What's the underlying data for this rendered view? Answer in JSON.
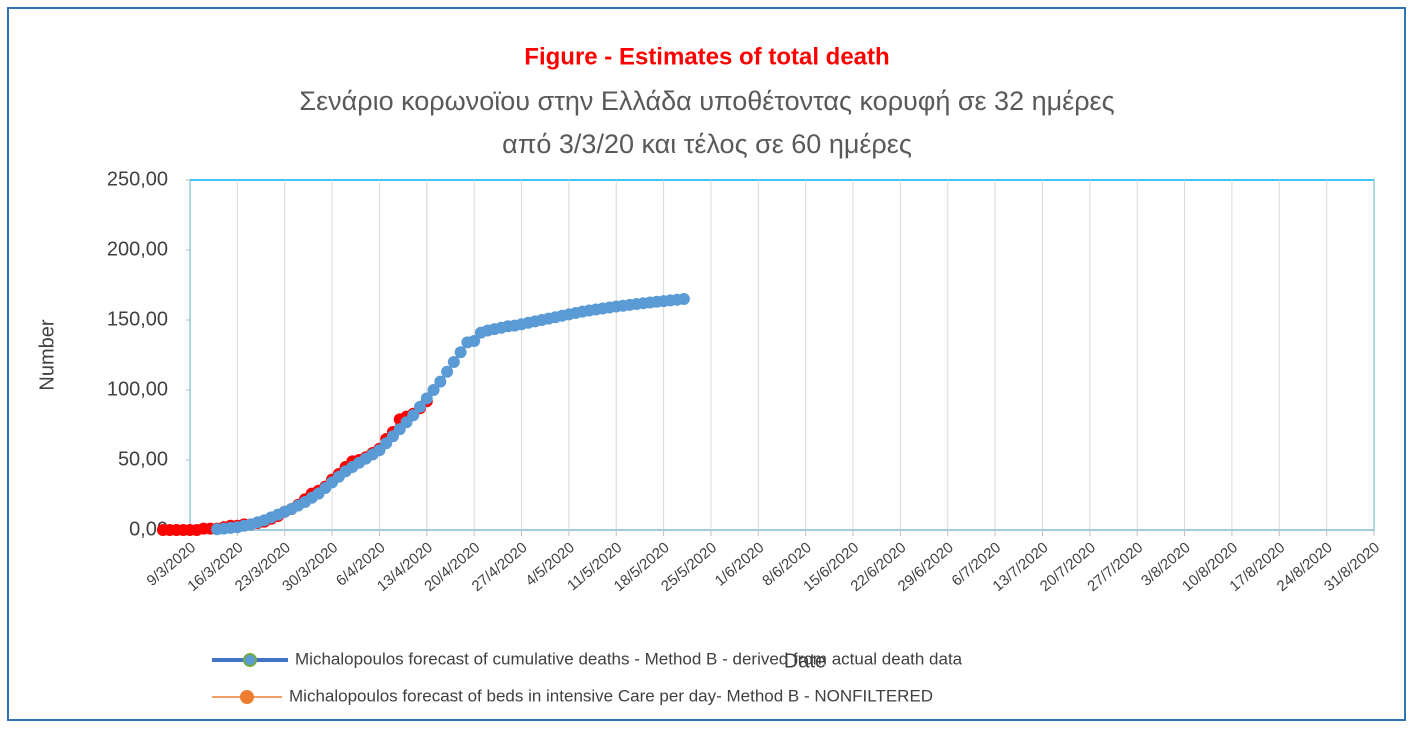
{
  "chart_data": {
    "type": "scatter-line",
    "title": "Figure  -  Estimates of total death",
    "subtitle": [
      "Σενάριο κορωνοϊου στην Ελλάδα υποθέτοντας κορυφή σε  32 ημέρες",
      "από 3/3/20  και τέλος σε  60 ημέρες"
    ],
    "x_label": "Date",
    "y_label": "Number",
    "xlim": [
      "9/3/2020",
      "31/8/2020"
    ],
    "xticks": [
      "9/3/2020",
      "16/3/2020",
      "23/3/2020",
      "30/3/2020",
      "6/4/2020",
      "13/4/2020",
      "20/4/2020",
      "27/4/2020",
      "4/5/2020",
      "11/5/2020",
      "18/5/2020",
      "25/5/2020",
      "1/6/2020",
      "8/6/2020",
      "15/6/2020",
      "22/6/2020",
      "29/6/2020",
      "6/7/2020",
      "13/7/2020",
      "20/7/2020",
      "27/7/2020",
      "3/8/2020",
      "10/8/2020",
      "17/8/2020",
      "24/8/2020",
      "31/8/2020"
    ],
    "ylim": [
      0,
      250
    ],
    "yticks": [
      {
        "value": 0,
        "label": "0,00"
      },
      {
        "value": 50,
        "label": "50,00"
      },
      {
        "value": 100,
        "label": "100,00"
      },
      {
        "value": 150,
        "label": "150,00"
      },
      {
        "value": 200,
        "label": "200,00"
      },
      {
        "value": 250,
        "label": "250,00"
      }
    ],
    "grid": true,
    "series": [
      {
        "name": "Michalopoulos forecast of cumulative deaths - Method B - derived from actual death data",
        "color": "#5b9bd5",
        "legend_color": "#4472c4",
        "x": [
          "13/3/2020",
          "14/3/2020",
          "15/3/2020",
          "16/3/2020",
          "17/3/2020",
          "18/3/2020",
          "19/3/2020",
          "20/3/2020",
          "21/3/2020",
          "22/3/2020",
          "23/3/2020",
          "24/3/2020",
          "25/3/2020",
          "26/3/2020",
          "27/3/2020",
          "28/3/2020",
          "29/3/2020",
          "30/3/2020",
          "31/3/2020",
          "1/4/2020",
          "2/4/2020",
          "3/4/2020",
          "4/4/2020",
          "5/4/2020",
          "6/4/2020",
          "7/4/2020",
          "8/4/2020",
          "9/4/2020",
          "10/4/2020",
          "11/4/2020",
          "12/4/2020",
          "13/4/2020",
          "14/4/2020",
          "15/4/2020",
          "16/4/2020",
          "17/4/2020",
          "18/4/2020",
          "19/4/2020",
          "20/4/2020",
          "21/4/2020",
          "22/4/2020",
          "23/4/2020",
          "24/4/2020",
          "25/4/2020",
          "26/4/2020",
          "27/4/2020",
          "28/4/2020",
          "29/4/2020",
          "30/4/2020",
          "1/5/2020",
          "2/5/2020",
          "3/5/2020",
          "4/5/2020",
          "5/5/2020",
          "6/5/2020",
          "7/5/2020",
          "8/5/2020",
          "9/5/2020",
          "10/5/2020",
          "11/5/2020",
          "12/5/2020",
          "13/5/2020",
          "14/5/2020",
          "15/5/2020",
          "16/5/2020",
          "17/5/2020",
          "18/5/2020",
          "19/5/2020",
          "20/5/2020",
          "21/5/2020"
        ],
        "values": [
          0.5,
          1,
          1.5,
          2,
          3,
          4,
          5.5,
          7,
          9,
          11,
          13,
          15,
          17.5,
          20,
          23,
          26,
          30,
          34,
          38,
          42,
          45,
          48,
          51,
          54,
          57,
          62,
          67,
          72,
          77,
          82,
          88,
          94,
          100,
          106,
          113,
          120,
          127,
          134,
          135,
          141,
          142.5,
          143.5,
          144.5,
          145.5,
          146,
          147,
          148,
          149,
          150,
          151,
          152,
          153,
          154,
          155,
          156,
          156.8,
          157.5,
          158.2,
          158.9,
          159.6,
          160.2,
          160.8,
          161.4,
          162,
          162.5,
          163,
          163.5,
          164,
          164.5,
          165
        ]
      },
      {
        "name": "Michalopoulos forecast of beds in intensive Care per day- Method B - NONFILTERED",
        "color": "#ff0000",
        "legend_color": "#ed7d31",
        "x": [
          "5/3/2020",
          "6/3/2020",
          "7/3/2020",
          "8/3/2020",
          "9/3/2020",
          "10/3/2020",
          "11/3/2020",
          "12/3/2020",
          "13/3/2020",
          "14/3/2020",
          "15/3/2020",
          "16/3/2020",
          "17/3/2020",
          "18/3/2020",
          "19/3/2020",
          "20/3/2020",
          "21/3/2020",
          "22/3/2020",
          "23/3/2020",
          "24/3/2020",
          "25/3/2020",
          "26/3/2020",
          "27/3/2020",
          "28/3/2020",
          "29/3/2020",
          "30/3/2020",
          "31/3/2020",
          "1/4/2020",
          "2/4/2020",
          "3/4/2020",
          "4/4/2020",
          "5/4/2020",
          "6/4/2020",
          "7/4/2020",
          "8/4/2020",
          "9/4/2020",
          "10/4/2020",
          "11/4/2020",
          "12/4/2020",
          "13/4/2020"
        ],
        "values": [
          0,
          0,
          0,
          0,
          0,
          0,
          1,
          1,
          1,
          2,
          3,
          3,
          4,
          4,
          5,
          6,
          8,
          10,
          13,
          15,
          18,
          22,
          26,
          28,
          31,
          36,
          40,
          45,
          49,
          50,
          52,
          55,
          58,
          65,
          70,
          79,
          81,
          83,
          87,
          92
        ]
      }
    ]
  }
}
